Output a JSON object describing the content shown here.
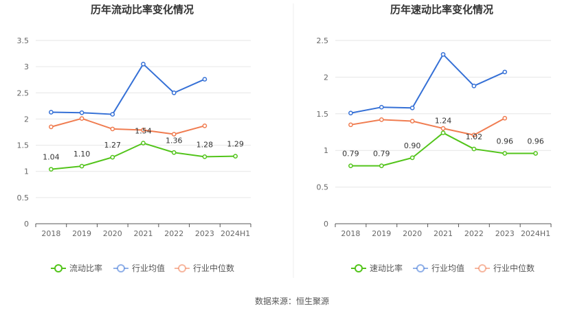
{
  "source": "数据来源：恒生聚源",
  "colors": {
    "company": "#52c41a",
    "industry_avg": "#3570d6",
    "industry_median": "#f07c50",
    "grid": "#e6e6e6",
    "axis": "#555555"
  },
  "chart_data": [
    {
      "type": "line",
      "title": "历年流动比率变化情况",
      "categories": [
        "2018",
        "2019",
        "2020",
        "2021",
        "2022",
        "2023",
        "2024H1"
      ],
      "yticks": [
        "0",
        "0.5",
        "1",
        "1.5",
        "2",
        "2.5",
        "3",
        "3.5"
      ],
      "ylim": [
        0,
        3.5
      ],
      "grid": true,
      "legend_position": "bottom",
      "series": [
        {
          "name": "流动比率",
          "role": "company",
          "values": [
            1.04,
            1.1,
            1.27,
            1.54,
            1.36,
            1.28,
            1.29
          ],
          "labels": [
            "1.04",
            "1.10",
            "1.27",
            "1.54",
            "1.36",
            "1.28",
            "1.29"
          ]
        },
        {
          "name": "行业均值",
          "role": "industry_avg",
          "values": [
            2.13,
            2.12,
            2.09,
            3.05,
            2.5,
            2.76,
            null
          ]
        },
        {
          "name": "行业中位数",
          "role": "industry_median",
          "values": [
            1.85,
            2.01,
            1.81,
            1.79,
            1.71,
            1.87,
            null
          ]
        }
      ]
    },
    {
      "type": "line",
      "title": "历年速动比率变化情况",
      "categories": [
        "2018",
        "2019",
        "2020",
        "2021",
        "2022",
        "2023",
        "2024H1"
      ],
      "yticks": [
        "0",
        "0.5",
        "1",
        "1.5",
        "2",
        "2.5"
      ],
      "ylim": [
        0,
        2.5
      ],
      "grid": true,
      "legend_position": "bottom",
      "series": [
        {
          "name": "速动比率",
          "role": "company",
          "values": [
            0.79,
            0.79,
            0.9,
            1.24,
            1.02,
            0.96,
            0.96
          ],
          "labels": [
            "0.79",
            "0.79",
            "0.90",
            "1.24",
            "1.02",
            "0.96",
            "0.96"
          ]
        },
        {
          "name": "行业均值",
          "role": "industry_avg",
          "values": [
            1.51,
            1.59,
            1.58,
            2.31,
            1.88,
            2.07,
            null
          ]
        },
        {
          "name": "行业中位数",
          "role": "industry_median",
          "values": [
            1.35,
            1.42,
            1.4,
            1.3,
            1.21,
            1.44,
            null
          ]
        }
      ]
    }
  ]
}
